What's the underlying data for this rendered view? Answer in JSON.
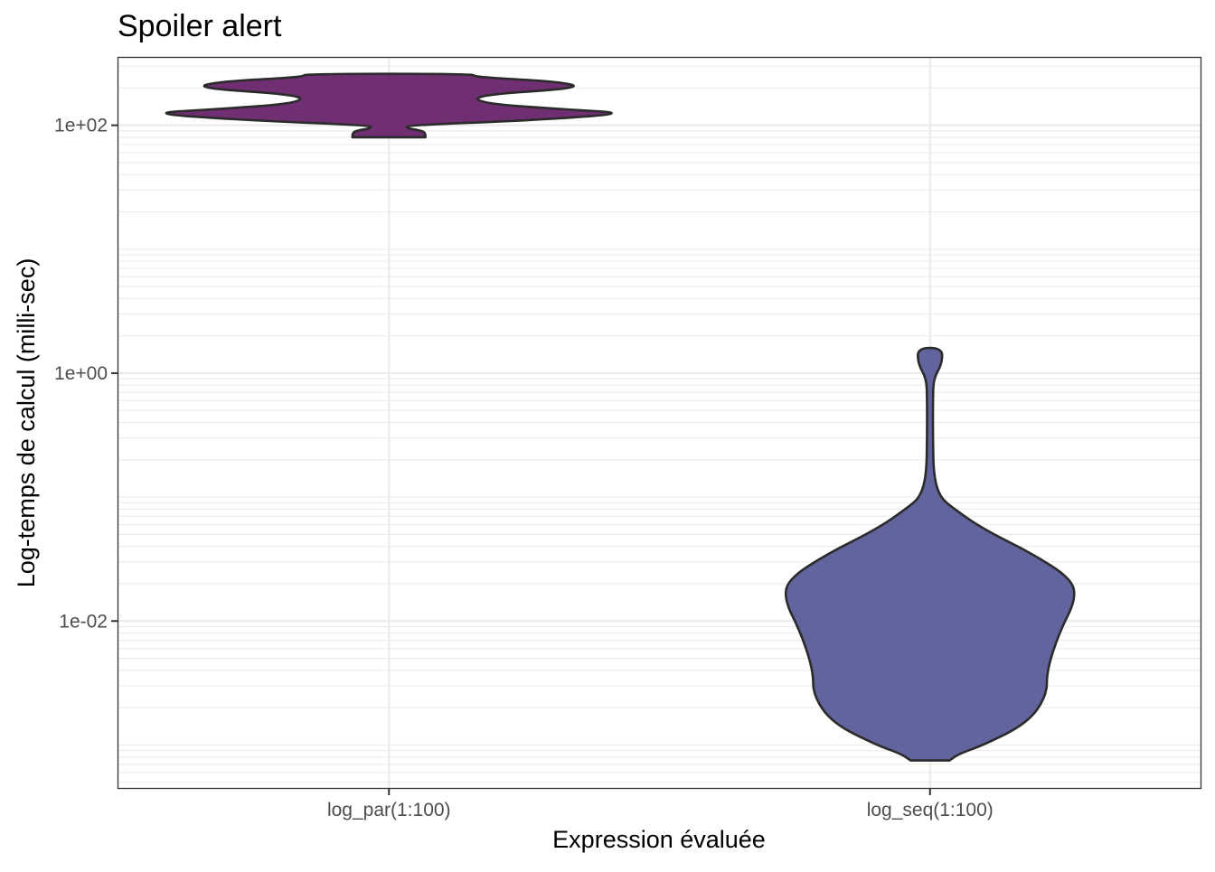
{
  "chart_data": {
    "type": "violin",
    "title": "Spoiler alert",
    "xlabel": "Expression évaluée",
    "ylabel": "Log-temps de calcul (milli-sec)",
    "y_scale": "log10",
    "ylim": [
      0.00045,
      350
    ],
    "y_ticks": [
      0.01,
      1,
      100
    ],
    "y_tick_labels": [
      "1e-02",
      "1e+00",
      "1e+02"
    ],
    "grid": true,
    "legend": "none",
    "categories": [
      "log_par(1:100)",
      "log_seq(1:100)"
    ],
    "series": [
      {
        "category": "log_par(1:100)",
        "color": "#5c125f",
        "outline": "#2b2b2b",
        "min": 80,
        "max": 260,
        "density_profile": [
          [
            80,
            0.15
          ],
          [
            85,
            0.15
          ],
          [
            90,
            0.14
          ],
          [
            95,
            0.07
          ],
          [
            100,
            0.08
          ],
          [
            110,
            0.6
          ],
          [
            125,
            1.0
          ],
          [
            135,
            0.7
          ],
          [
            150,
            0.38
          ],
          [
            175,
            0.35
          ],
          [
            200,
            0.8
          ],
          [
            225,
            0.7
          ],
          [
            245,
            0.35
          ],
          [
            260,
            0.35
          ]
        ]
      },
      {
        "category": "log_seq(1:100)",
        "color": "#4c4e8f",
        "outline": "#2b2b2b",
        "min": 0.00075,
        "max": 1.6,
        "density_profile": [
          [
            0.00075,
            0.08
          ],
          [
            0.00085,
            0.12
          ],
          [
            0.001,
            0.22
          ],
          [
            0.0015,
            0.4
          ],
          [
            0.0025,
            0.48
          ],
          [
            0.004,
            0.48
          ],
          [
            0.008,
            0.53
          ],
          [
            0.015,
            0.6
          ],
          [
            0.022,
            0.58
          ],
          [
            0.035,
            0.42
          ],
          [
            0.055,
            0.22
          ],
          [
            0.08,
            0.1
          ],
          [
            0.1,
            0.04
          ],
          [
            0.15,
            0.015
          ],
          [
            0.3,
            0.012
          ],
          [
            0.6,
            0.012
          ],
          [
            0.9,
            0.014
          ],
          [
            1.2,
            0.05
          ],
          [
            1.6,
            0.05
          ]
        ]
      }
    ]
  }
}
